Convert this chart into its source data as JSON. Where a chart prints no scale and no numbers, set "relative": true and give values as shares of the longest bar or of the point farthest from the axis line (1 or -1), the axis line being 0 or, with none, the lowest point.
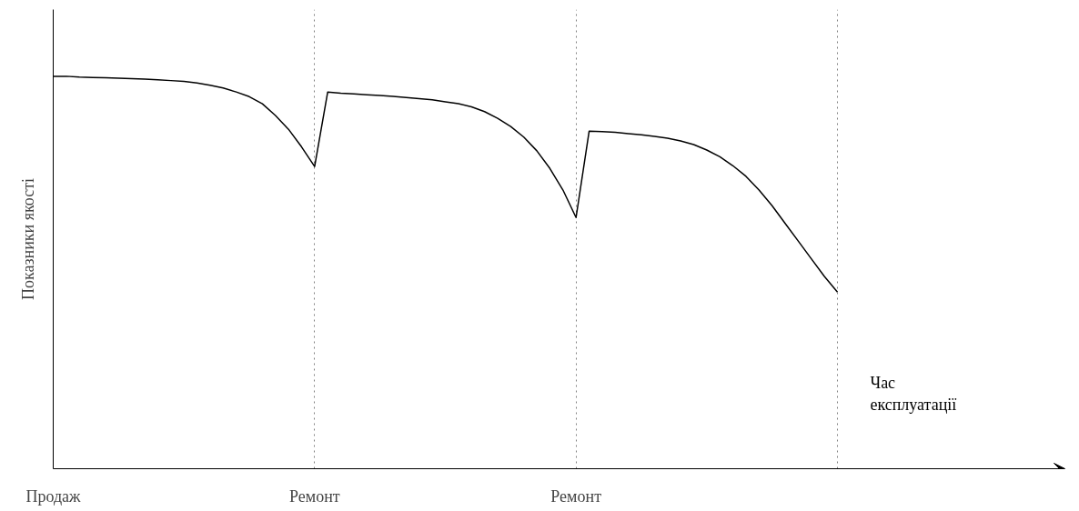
{
  "chart_data": {
    "type": "line",
    "relative": true,
    "ylabel": "Показники якості",
    "xlabel": "Час експлуатації",
    "categories": [
      "Продаж",
      null,
      null,
      null,
      null,
      null,
      null,
      null,
      null,
      null,
      null,
      null,
      null,
      null,
      null,
      null,
      null,
      null,
      null,
      null,
      "Ремонт",
      null,
      null,
      null,
      null,
      null,
      null,
      null,
      null,
      null,
      null,
      null,
      null,
      null,
      null,
      null,
      null,
      null,
      null,
      null,
      "Ремонт",
      null,
      null,
      null,
      null,
      null,
      null,
      null,
      null,
      null,
      null,
      null,
      null,
      null,
      null,
      null,
      null,
      null,
      null,
      null,
      null,
      null,
      null,
      null,
      null,
      null,
      null,
      null,
      null,
      null,
      null,
      null,
      null,
      null,
      null,
      null,
      null,
      null
    ],
    "series": [
      {
        "color": "#000000",
        "values": [
          1.0,
          1.0,
          0.998,
          0.997,
          0.996,
          0.995,
          0.994,
          0.993,
          0.991,
          0.989,
          0.987,
          0.983,
          0.977,
          0.97,
          0.96,
          0.948,
          0.93,
          0.9,
          0.865,
          0.82,
          0.77,
          0.96,
          0.957,
          0.955,
          0.953,
          0.951,
          0.949,
          0.946,
          0.943,
          0.94,
          0.935,
          0.93,
          0.922,
          0.91,
          0.893,
          0.872,
          0.845,
          0.81,
          0.765,
          0.71,
          0.64,
          0.86,
          0.859,
          0.857,
          0.854,
          0.851,
          0.847,
          0.842,
          0.835,
          0.826,
          0.812,
          0.795,
          0.772,
          0.745,
          0.71,
          0.67,
          0.625,
          0.58,
          0.535,
          0.49,
          0.45,
          null,
          null,
          null,
          null,
          null,
          null,
          null,
          null,
          null,
          null,
          null,
          null,
          null,
          null,
          null,
          null,
          null
        ]
      }
    ],
    "grid": "x",
    "marker": "none",
    "line_style": "solid"
  }
}
